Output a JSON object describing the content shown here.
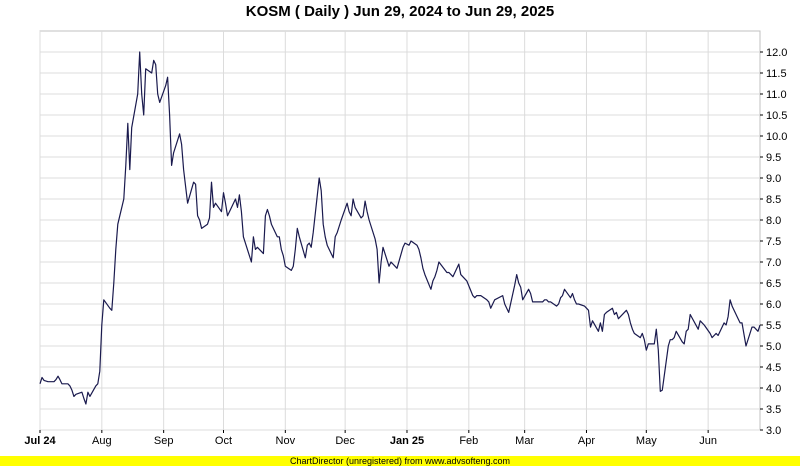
{
  "chart_data": {
    "type": "line",
    "title": "KOSM ( Daily ) Jun 29, 2024 to Jun 29, 2025",
    "xlabel": "",
    "ylabel": "",
    "ylim": [
      3.0,
      12.5
    ],
    "grid": true,
    "yticks": [
      "3.0",
      "3.5",
      "4.0",
      "4.5",
      "5.0",
      "5.5",
      "6.0",
      "6.5",
      "7.0",
      "7.5",
      "8.0",
      "8.5",
      "9.0",
      "9.5",
      "10.0",
      "10.5",
      "11.0",
      "11.5",
      "12.0"
    ],
    "xticks": [
      {
        "label": "Jul 24",
        "date": "2024-07-01",
        "bold": true
      },
      {
        "label": "Aug",
        "date": "2024-08-01",
        "bold": false
      },
      {
        "label": "Sep",
        "date": "2024-09-01",
        "bold": false
      },
      {
        "label": "Oct",
        "date": "2024-10-01",
        "bold": false
      },
      {
        "label": "Nov",
        "date": "2024-11-01",
        "bold": false
      },
      {
        "label": "Dec",
        "date": "2024-12-01",
        "bold": false
      },
      {
        "label": "Jan 25",
        "date": "2025-01-01",
        "bold": true
      },
      {
        "label": "Feb",
        "date": "2025-02-01",
        "bold": false
      },
      {
        "label": "Mar",
        "date": "2025-03-01",
        "bold": false
      },
      {
        "label": "Apr",
        "date": "2025-04-01",
        "bold": false
      },
      {
        "label": "May",
        "date": "2025-05-01",
        "bold": false
      },
      {
        "label": "Jun",
        "date": "2025-06-01",
        "bold": false
      }
    ],
    "x_range": [
      "2024-07-01",
      "2025-06-27"
    ],
    "series": [
      {
        "name": "",
        "color": "#1a1a4e",
        "points": [
          [
            "2024-07-01",
            4.1
          ],
          [
            "2024-07-02",
            4.25
          ],
          [
            "2024-07-03",
            4.18
          ],
          [
            "2024-07-05",
            4.15
          ],
          [
            "2024-07-08",
            4.15
          ],
          [
            "2024-07-09",
            4.2
          ],
          [
            "2024-07-10",
            4.28
          ],
          [
            "2024-07-11",
            4.2
          ],
          [
            "2024-07-12",
            4.1
          ],
          [
            "2024-07-15",
            4.1
          ],
          [
            "2024-07-16",
            4.05
          ],
          [
            "2024-07-17",
            3.95
          ],
          [
            "2024-07-18",
            3.8
          ],
          [
            "2024-07-19",
            3.85
          ],
          [
            "2024-07-22",
            3.9
          ],
          [
            "2024-07-23",
            3.75
          ],
          [
            "2024-07-24",
            3.62
          ],
          [
            "2024-07-25",
            3.9
          ],
          [
            "2024-07-26",
            3.8
          ],
          [
            "2024-07-29",
            4.05
          ],
          [
            "2024-07-30",
            4.1
          ],
          [
            "2024-07-31",
            4.4
          ],
          [
            "2024-08-01",
            5.5
          ],
          [
            "2024-08-02",
            6.1
          ],
          [
            "2024-08-05",
            5.9
          ],
          [
            "2024-08-06",
            5.85
          ],
          [
            "2024-08-07",
            6.5
          ],
          [
            "2024-08-08",
            7.3
          ],
          [
            "2024-08-09",
            7.9
          ],
          [
            "2024-08-12",
            8.5
          ],
          [
            "2024-08-13",
            9.3
          ],
          [
            "2024-08-14",
            10.3
          ],
          [
            "2024-08-15",
            9.2
          ],
          [
            "2024-08-16",
            10.2
          ],
          [
            "2024-08-19",
            11.0
          ],
          [
            "2024-08-20",
            12.0
          ],
          [
            "2024-08-21",
            11.0
          ],
          [
            "2024-08-22",
            10.5
          ],
          [
            "2024-08-23",
            11.6
          ],
          [
            "2024-08-26",
            11.5
          ],
          [
            "2024-08-27",
            11.8
          ],
          [
            "2024-08-28",
            11.7
          ],
          [
            "2024-08-29",
            11.0
          ],
          [
            "2024-08-30",
            10.8
          ],
          [
            "2024-09-02",
            11.2
          ],
          [
            "2024-09-03",
            11.4
          ],
          [
            "2024-09-04",
            10.5
          ],
          [
            "2024-09-05",
            9.3
          ],
          [
            "2024-09-06",
            9.6
          ],
          [
            "2024-09-09",
            10.05
          ],
          [
            "2024-09-10",
            9.8
          ],
          [
            "2024-09-11",
            9.2
          ],
          [
            "2024-09-12",
            8.8
          ],
          [
            "2024-09-13",
            8.4
          ],
          [
            "2024-09-16",
            8.9
          ],
          [
            "2024-09-17",
            8.85
          ],
          [
            "2024-09-18",
            8.1
          ],
          [
            "2024-09-19",
            8.0
          ],
          [
            "2024-09-20",
            7.8
          ],
          [
            "2024-09-23",
            7.9
          ],
          [
            "2024-09-24",
            8.05
          ],
          [
            "2024-09-25",
            8.9
          ],
          [
            "2024-09-26",
            8.3
          ],
          [
            "2024-09-27",
            8.4
          ],
          [
            "2024-09-30",
            8.2
          ],
          [
            "2024-10-01",
            8.65
          ],
          [
            "2024-10-02",
            8.4
          ],
          [
            "2024-10-03",
            8.1
          ],
          [
            "2024-10-04",
            8.2
          ],
          [
            "2024-10-07",
            8.5
          ],
          [
            "2024-10-08",
            8.3
          ],
          [
            "2024-10-09",
            8.6
          ],
          [
            "2024-10-10",
            8.2
          ],
          [
            "2024-10-11",
            7.6
          ],
          [
            "2024-10-14",
            7.15
          ],
          [
            "2024-10-15",
            7.0
          ],
          [
            "2024-10-16",
            7.6
          ],
          [
            "2024-10-17",
            7.3
          ],
          [
            "2024-10-18",
            7.35
          ],
          [
            "2024-10-21",
            7.2
          ],
          [
            "2024-10-22",
            8.1
          ],
          [
            "2024-10-23",
            8.25
          ],
          [
            "2024-10-24",
            8.1
          ],
          [
            "2024-10-25",
            7.9
          ],
          [
            "2024-10-28",
            7.6
          ],
          [
            "2024-10-29",
            7.6
          ],
          [
            "2024-10-30",
            7.3
          ],
          [
            "2024-10-31",
            7.15
          ],
          [
            "2024-11-01",
            6.9
          ],
          [
            "2024-11-04",
            6.8
          ],
          [
            "2024-11-05",
            6.9
          ],
          [
            "2024-11-06",
            7.3
          ],
          [
            "2024-11-07",
            7.8
          ],
          [
            "2024-11-08",
            7.6
          ],
          [
            "2024-11-11",
            7.1
          ],
          [
            "2024-11-12",
            7.4
          ],
          [
            "2024-11-13",
            7.45
          ],
          [
            "2024-11-14",
            7.35
          ],
          [
            "2024-11-15",
            7.7
          ],
          [
            "2024-11-18",
            9.0
          ],
          [
            "2024-11-19",
            8.7
          ],
          [
            "2024-11-20",
            7.9
          ],
          [
            "2024-11-21",
            7.6
          ],
          [
            "2024-11-22",
            7.4
          ],
          [
            "2024-11-25",
            7.1
          ],
          [
            "2024-11-26",
            7.6
          ],
          [
            "2024-11-27",
            7.7
          ],
          [
            "2024-11-29",
            8.0
          ],
          [
            "2024-12-02",
            8.4
          ],
          [
            "2024-12-03",
            8.2
          ],
          [
            "2024-12-04",
            8.1
          ],
          [
            "2024-12-05",
            8.5
          ],
          [
            "2024-12-06",
            8.3
          ],
          [
            "2024-12-09",
            8.05
          ],
          [
            "2024-12-10",
            8.1
          ],
          [
            "2024-12-11",
            8.45
          ],
          [
            "2024-12-12",
            8.2
          ],
          [
            "2024-12-13",
            8.0
          ],
          [
            "2024-12-16",
            7.55
          ],
          [
            "2024-12-17",
            7.3
          ],
          [
            "2024-12-18",
            6.5
          ],
          [
            "2024-12-19",
            7.0
          ],
          [
            "2024-12-20",
            7.35
          ],
          [
            "2024-12-23",
            6.9
          ],
          [
            "2024-12-24",
            7.0
          ],
          [
            "2024-12-26",
            6.9
          ],
          [
            "2024-12-27",
            6.85
          ],
          [
            "2024-12-30",
            7.35
          ],
          [
            "2024-12-31",
            7.45
          ],
          [
            "2025-01-02",
            7.4
          ],
          [
            "2025-01-03",
            7.5
          ],
          [
            "2025-01-06",
            7.4
          ],
          [
            "2025-01-07",
            7.3
          ],
          [
            "2025-01-08",
            7.1
          ],
          [
            "2025-01-09",
            6.85
          ],
          [
            "2025-01-10",
            6.7
          ],
          [
            "2025-01-13",
            6.35
          ],
          [
            "2025-01-14",
            6.55
          ],
          [
            "2025-01-15",
            6.65
          ],
          [
            "2025-01-16",
            6.8
          ],
          [
            "2025-01-17",
            7.0
          ],
          [
            "2025-01-21",
            6.75
          ],
          [
            "2025-01-22",
            6.75
          ],
          [
            "2025-01-23",
            6.7
          ],
          [
            "2025-01-24",
            6.65
          ],
          [
            "2025-01-27",
            6.95
          ],
          [
            "2025-01-28",
            6.7
          ],
          [
            "2025-01-29",
            6.65
          ],
          [
            "2025-01-30",
            6.6
          ],
          [
            "2025-01-31",
            6.55
          ],
          [
            "2025-02-03",
            6.2
          ],
          [
            "2025-02-04",
            6.15
          ],
          [
            "2025-02-05",
            6.2
          ],
          [
            "2025-02-06",
            6.2
          ],
          [
            "2025-02-07",
            6.2
          ],
          [
            "2025-02-10",
            6.1
          ],
          [
            "2025-02-11",
            6.05
          ],
          [
            "2025-02-12",
            5.9
          ],
          [
            "2025-02-13",
            6.0
          ],
          [
            "2025-02-14",
            6.1
          ],
          [
            "2025-02-18",
            6.2
          ],
          [
            "2025-02-19",
            6.0
          ],
          [
            "2025-02-20",
            5.9
          ],
          [
            "2025-02-21",
            5.8
          ],
          [
            "2025-02-24",
            6.45
          ],
          [
            "2025-02-25",
            6.7
          ],
          [
            "2025-02-26",
            6.5
          ],
          [
            "2025-02-27",
            6.4
          ],
          [
            "2025-02-28",
            6.1
          ],
          [
            "2025-03-03",
            6.35
          ],
          [
            "2025-03-04",
            6.25
          ],
          [
            "2025-03-05",
            6.05
          ],
          [
            "2025-03-06",
            6.05
          ],
          [
            "2025-03-07",
            6.05
          ],
          [
            "2025-03-10",
            6.05
          ],
          [
            "2025-03-11",
            6.1
          ],
          [
            "2025-03-12",
            6.1
          ],
          [
            "2025-03-13",
            6.05
          ],
          [
            "2025-03-14",
            6.05
          ],
          [
            "2025-03-17",
            5.95
          ],
          [
            "2025-03-18",
            6.0
          ],
          [
            "2025-03-19",
            6.15
          ],
          [
            "2025-03-20",
            6.2
          ],
          [
            "2025-03-21",
            6.35
          ],
          [
            "2025-03-24",
            6.15
          ],
          [
            "2025-03-25",
            6.25
          ],
          [
            "2025-03-26",
            6.1
          ],
          [
            "2025-03-27",
            6.0
          ],
          [
            "2025-03-28",
            6.0
          ],
          [
            "2025-03-31",
            5.95
          ],
          [
            "2025-04-01",
            5.9
          ],
          [
            "2025-04-02",
            5.85
          ],
          [
            "2025-04-03",
            5.45
          ],
          [
            "2025-04-04",
            5.6
          ],
          [
            "2025-04-07",
            5.35
          ],
          [
            "2025-04-08",
            5.55
          ],
          [
            "2025-04-09",
            5.35
          ],
          [
            "2025-04-10",
            5.75
          ],
          [
            "2025-04-11",
            5.8
          ],
          [
            "2025-04-14",
            5.9
          ],
          [
            "2025-04-15",
            5.75
          ],
          [
            "2025-04-16",
            5.8
          ],
          [
            "2025-04-17",
            5.65
          ],
          [
            "2025-04-21",
            5.85
          ],
          [
            "2025-04-22",
            5.75
          ],
          [
            "2025-04-23",
            5.55
          ],
          [
            "2025-04-24",
            5.4
          ],
          [
            "2025-04-25",
            5.3
          ],
          [
            "2025-04-28",
            5.2
          ],
          [
            "2025-04-29",
            5.3
          ],
          [
            "2025-04-30",
            5.15
          ],
          [
            "2025-05-01",
            4.9
          ],
          [
            "2025-05-02",
            5.05
          ],
          [
            "2025-05-05",
            5.05
          ],
          [
            "2025-05-06",
            5.4
          ],
          [
            "2025-05-07",
            4.9
          ],
          [
            "2025-05-08",
            3.92
          ],
          [
            "2025-05-09",
            3.95
          ],
          [
            "2025-05-12",
            5.0
          ],
          [
            "2025-05-13",
            5.15
          ],
          [
            "2025-05-14",
            5.15
          ],
          [
            "2025-05-15",
            5.2
          ],
          [
            "2025-05-16",
            5.35
          ],
          [
            "2025-05-19",
            5.1
          ],
          [
            "2025-05-20",
            5.05
          ],
          [
            "2025-05-21",
            5.35
          ],
          [
            "2025-05-22",
            5.4
          ],
          [
            "2025-05-23",
            5.75
          ],
          [
            "2025-05-27",
            5.4
          ],
          [
            "2025-05-28",
            5.6
          ],
          [
            "2025-05-29",
            5.55
          ],
          [
            "2025-05-30",
            5.5
          ],
          [
            "2025-06-02",
            5.3
          ],
          [
            "2025-06-03",
            5.2
          ],
          [
            "2025-06-04",
            5.25
          ],
          [
            "2025-06-05",
            5.3
          ],
          [
            "2025-06-06",
            5.25
          ],
          [
            "2025-06-09",
            5.55
          ],
          [
            "2025-06-10",
            5.5
          ],
          [
            "2025-06-11",
            5.7
          ],
          [
            "2025-06-12",
            6.1
          ],
          [
            "2025-06-13",
            5.95
          ],
          [
            "2025-06-16",
            5.65
          ],
          [
            "2025-06-17",
            5.55
          ],
          [
            "2025-06-18",
            5.55
          ],
          [
            "2025-06-20",
            5.0
          ],
          [
            "2025-06-23",
            5.45
          ],
          [
            "2025-06-24",
            5.45
          ],
          [
            "2025-06-25",
            5.4
          ],
          [
            "2025-06-26",
            5.35
          ],
          [
            "2025-06-27",
            5.5
          ]
        ]
      }
    ]
  },
  "footer": {
    "text": "ChartDirector (unregistered) from www.advsofteng.com"
  }
}
